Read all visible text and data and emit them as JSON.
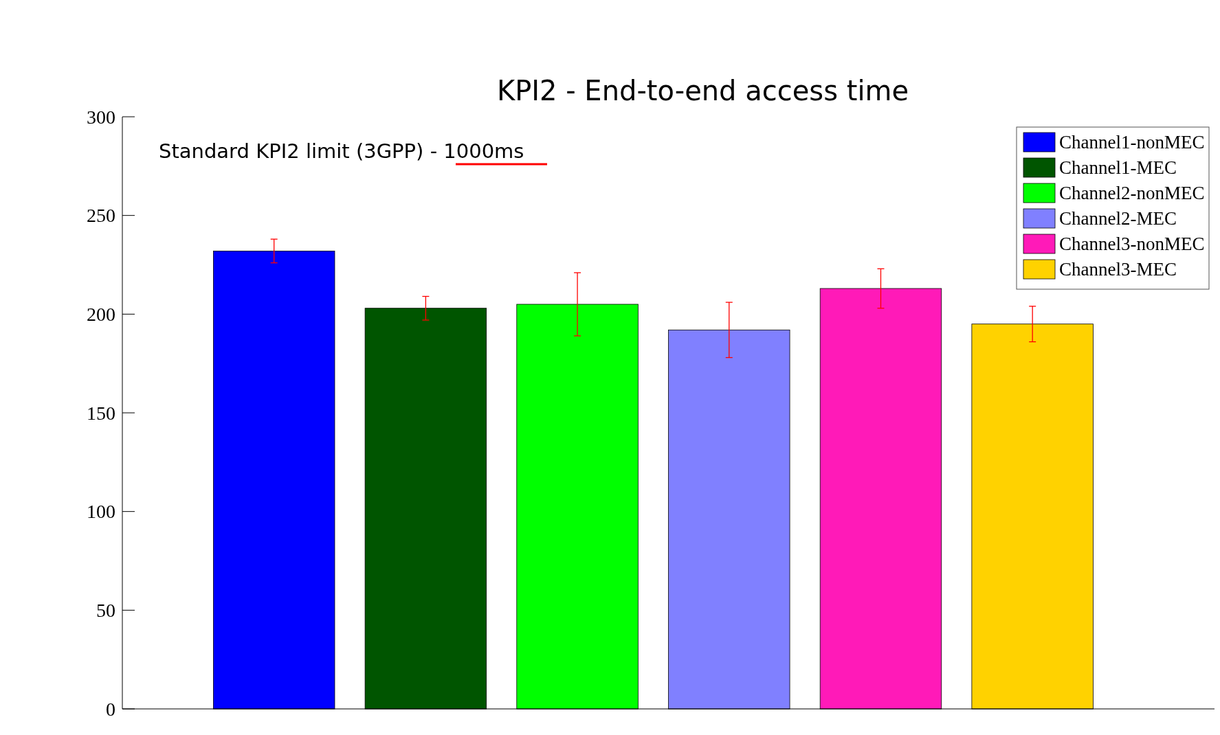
{
  "chart_data": {
    "type": "bar",
    "title": "KPI2 - End-to-end access time",
    "annotations": [
      "Standard KPI2 limit (3GPP) - 1000ms"
    ],
    "categories": [
      null,
      null,
      null,
      null,
      null,
      null
    ],
    "stacked": true,
    "ylim": [
      0,
      300
    ],
    "yticks": [
      0,
      50,
      100,
      150,
      200,
      250,
      300
    ],
    "legend": "top right",
    "grid": false,
    "series": [
      {
        "name": "Channel1-nonMEC",
        "color": "#0000ff",
        "values": [
          232,
          null,
          null,
          null,
          null,
          null
        ],
        "errors": [
          6,
          null,
          null,
          null,
          null,
          null
        ]
      },
      {
        "name": "Channel1-MEC",
        "color": "#005500",
        "values": [
          null,
          203,
          null,
          null,
          null,
          null
        ],
        "errors": [
          null,
          6,
          null,
          null,
          null,
          null
        ]
      },
      {
        "name": "Channel2-nonMEC",
        "color": "#00ff00",
        "values": [
          null,
          null,
          205,
          null,
          null,
          null
        ],
        "errors": [
          null,
          null,
          16,
          null,
          null,
          null
        ]
      },
      {
        "name": "Channel2-MEC",
        "color": "#8080ff",
        "values": [
          null,
          null,
          null,
          192,
          null,
          null
        ],
        "errors": [
          null,
          null,
          null,
          14,
          null,
          null
        ]
      },
      {
        "name": "Channel3-nonMEC",
        "color": "#ff1ab8",
        "values": [
          null,
          null,
          null,
          null,
          213,
          null
        ],
        "errors": [
          null,
          null,
          null,
          null,
          10,
          null
        ]
      },
      {
        "name": "Channel3-MEC",
        "color": "#ffd200",
        "values": [
          null,
          null,
          null,
          null,
          null,
          195
        ],
        "errors": [
          null,
          null,
          null,
          null,
          null,
          9
        ]
      }
    ]
  }
}
